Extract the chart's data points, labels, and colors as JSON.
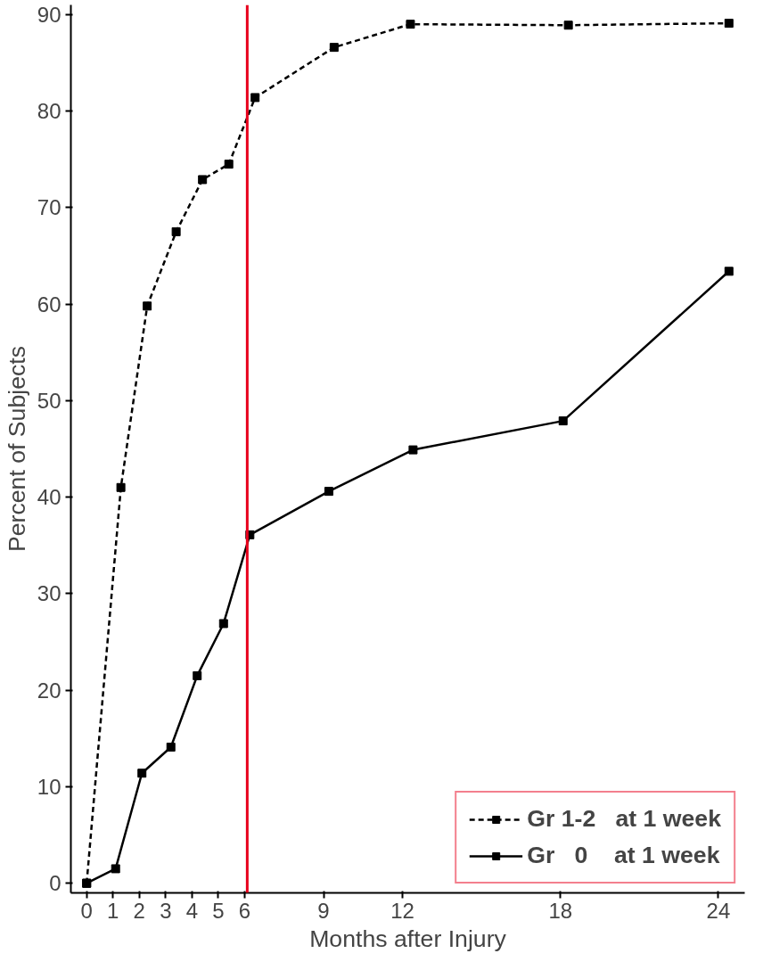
{
  "chart_data": {
    "type": "line",
    "xlabel": "Months after Injury",
    "ylabel": "Percent of Subjects",
    "series": [
      {
        "name": "Gr 1-2   at 1 week",
        "color": "#000000",
        "line_style": "dashed",
        "x": [
          0,
          1.3,
          2.3,
          3.4,
          4.4,
          5.4,
          6.4,
          9.4,
          12.3,
          18.3,
          24.4
        ],
        "values": [
          0,
          41.0,
          59.8,
          67.5,
          72.9,
          74.5,
          81.4,
          86.6,
          89.0,
          88.9,
          89.1
        ]
      },
      {
        "name": "Gr   0    at 1 week",
        "color": "#000000",
        "line_style": "solid",
        "x": [
          0,
          1.1,
          2.1,
          3.2,
          4.2,
          5.2,
          6.2,
          9.2,
          12.4,
          18.1,
          24.4
        ],
        "values": [
          0,
          1.5,
          11.4,
          14.1,
          21.5,
          26.9,
          36.1,
          40.6,
          44.9,
          47.9,
          63.4
        ]
      }
    ],
    "marker": "square",
    "xlim": [
      -0.6,
      25
    ],
    "ylim": [
      -1,
      91
    ],
    "xticks": [
      0,
      1,
      2,
      3,
      4,
      5,
      6,
      9,
      12,
      18,
      24
    ],
    "yticks": [
      0,
      10,
      20,
      30,
      40,
      50,
      60,
      70,
      80,
      90
    ],
    "ref_lines": [
      {
        "axis": "x",
        "value": 6.1,
        "color": "#e8001c"
      }
    ],
    "grid": false,
    "legend": "bottom right"
  }
}
